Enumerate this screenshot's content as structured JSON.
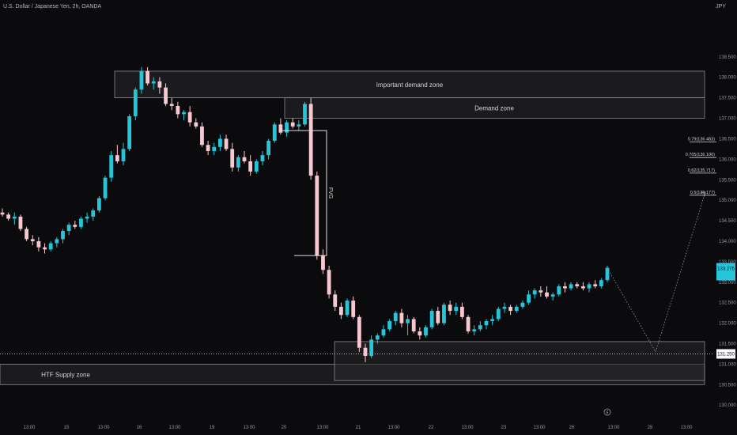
{
  "header": {
    "title": "U.S. Dollar / Japanese Yen, 2h, OANDA",
    "currency": "JPY"
  },
  "colors": {
    "background": "#0b0b0d",
    "up_candle": "#26c6da",
    "down_candle": "#f8c8d0",
    "zone_fill": "#2a2a2e",
    "zone_border": "#8a8a8f",
    "text": "#d1d4dc",
    "axis_text": "#9598a1",
    "price_badge": "#26c6da",
    "level_badge": "#ffffff"
  },
  "chart_data": {
    "type": "candlestick",
    "symbol": "USDJPY",
    "timeframe": "2h",
    "ylim": [
      129.85,
      139.5
    ],
    "y_ticks": [
      "138.500",
      "138.000",
      "137.500",
      "137.000",
      "136.500",
      "136.000",
      "135.500",
      "135.000",
      "134.500",
      "134.000",
      "133.500",
      "133.000",
      "132.500",
      "132.000",
      "131.500",
      "131.000",
      "130.500",
      "130.000"
    ],
    "x_ticks": [
      "13:00",
      "15",
      "13:00",
      "16",
      "13:00",
      "19",
      "13:00",
      "20",
      "13:00",
      "21",
      "13:00",
      "22",
      "13:00",
      "23",
      "13:00",
      "26",
      "13:00",
      "28",
      "13:00"
    ],
    "candles": [
      [
        134.7,
        134.8,
        134.6,
        134.65
      ],
      [
        134.65,
        134.7,
        134.5,
        134.55
      ],
      [
        134.55,
        134.7,
        134.4,
        134.6
      ],
      [
        134.6,
        134.65,
        134.25,
        134.3
      ],
      [
        134.3,
        134.35,
        134.0,
        134.05
      ],
      [
        134.05,
        134.15,
        133.9,
        134.0
      ],
      [
        134.0,
        134.1,
        133.75,
        133.85
      ],
      [
        133.85,
        133.95,
        133.7,
        133.8
      ],
      [
        133.8,
        134.0,
        133.75,
        133.95
      ],
      [
        133.95,
        134.1,
        133.85,
        134.05
      ],
      [
        134.05,
        134.3,
        133.95,
        134.25
      ],
      [
        134.25,
        134.45,
        134.15,
        134.4
      ],
      [
        134.4,
        134.5,
        134.3,
        134.35
      ],
      [
        134.35,
        134.6,
        134.3,
        134.55
      ],
      [
        134.55,
        134.7,
        134.45,
        134.6
      ],
      [
        134.6,
        134.8,
        134.5,
        134.75
      ],
      [
        134.75,
        135.1,
        134.7,
        135.05
      ],
      [
        135.05,
        135.6,
        135.0,
        135.55
      ],
      [
        135.55,
        136.2,
        135.45,
        136.1
      ],
      [
        136.1,
        136.35,
        135.9,
        135.95
      ],
      [
        135.95,
        136.4,
        135.85,
        136.25
      ],
      [
        136.25,
        137.1,
        136.2,
        137.05
      ],
      [
        137.05,
        137.75,
        136.95,
        137.7
      ],
      [
        137.7,
        138.25,
        137.6,
        138.15
      ],
      [
        138.15,
        138.25,
        137.8,
        137.85
      ],
      [
        137.85,
        138.0,
        137.7,
        137.9
      ],
      [
        137.9,
        138.0,
        137.6,
        137.75
      ],
      [
        137.75,
        137.85,
        137.3,
        137.35
      ],
      [
        137.35,
        137.5,
        137.2,
        137.3
      ],
      [
        137.3,
        137.4,
        137.0,
        137.1
      ],
      [
        137.1,
        137.2,
        136.95,
        137.15
      ],
      [
        137.15,
        137.3,
        136.8,
        136.9
      ],
      [
        136.9,
        137.0,
        136.75,
        136.8
      ],
      [
        136.8,
        136.9,
        136.3,
        136.35
      ],
      [
        136.35,
        136.45,
        136.1,
        136.2
      ],
      [
        136.2,
        136.4,
        136.1,
        136.3
      ],
      [
        136.3,
        136.6,
        136.2,
        136.5
      ],
      [
        136.5,
        136.6,
        136.2,
        136.25
      ],
      [
        136.25,
        136.4,
        135.7,
        135.8
      ],
      [
        135.8,
        136.1,
        135.7,
        136.05
      ],
      [
        136.05,
        136.2,
        135.9,
        135.95
      ],
      [
        135.95,
        136.1,
        135.6,
        135.7
      ],
      [
        135.7,
        136.0,
        135.65,
        135.95
      ],
      [
        135.95,
        136.2,
        135.85,
        136.1
      ],
      [
        136.1,
        136.5,
        136.0,
        136.45
      ],
      [
        136.45,
        136.9,
        136.4,
        136.85
      ],
      [
        136.85,
        137.0,
        136.6,
        136.65
      ],
      [
        136.65,
        136.95,
        136.55,
        136.9
      ],
      [
        136.9,
        137.0,
        136.75,
        136.8
      ],
      [
        136.8,
        136.95,
        136.7,
        136.85
      ],
      [
        136.85,
        137.4,
        136.8,
        137.35
      ],
      [
        137.35,
        137.5,
        135.5,
        135.6
      ],
      [
        135.6,
        135.7,
        133.55,
        133.65
      ],
      [
        133.65,
        133.8,
        133.2,
        133.3
      ],
      [
        133.3,
        133.4,
        132.6,
        132.7
      ],
      [
        132.7,
        132.8,
        132.3,
        132.4
      ],
      [
        132.4,
        132.5,
        132.1,
        132.2
      ],
      [
        132.2,
        132.6,
        132.15,
        132.55
      ],
      [
        132.55,
        132.65,
        132.1,
        132.15
      ],
      [
        132.15,
        132.2,
        131.3,
        131.4
      ],
      [
        131.4,
        131.5,
        131.05,
        131.2
      ],
      [
        131.2,
        131.7,
        131.15,
        131.6
      ],
      [
        131.6,
        131.75,
        131.5,
        131.7
      ],
      [
        131.7,
        131.95,
        131.65,
        131.85
      ],
      [
        131.85,
        132.1,
        131.8,
        132.05
      ],
      [
        132.05,
        132.3,
        131.95,
        132.25
      ],
      [
        132.25,
        132.35,
        131.9,
        132.0
      ],
      [
        132.0,
        132.2,
        131.7,
        132.1
      ],
      [
        132.1,
        132.15,
        131.75,
        131.8
      ],
      [
        131.8,
        131.9,
        131.6,
        131.7
      ],
      [
        131.7,
        131.95,
        131.65,
        131.9
      ],
      [
        131.9,
        132.35,
        131.85,
        132.3
      ],
      [
        132.3,
        132.4,
        131.95,
        132.0
      ],
      [
        132.0,
        132.5,
        131.95,
        132.45
      ],
      [
        132.45,
        132.55,
        132.2,
        132.3
      ],
      [
        132.3,
        132.5,
        132.2,
        132.4
      ],
      [
        132.4,
        132.5,
        132.1,
        132.15
      ],
      [
        132.15,
        132.2,
        131.75,
        131.8
      ],
      [
        131.8,
        131.95,
        131.7,
        131.85
      ],
      [
        131.85,
        132.05,
        131.8,
        131.95
      ],
      [
        131.95,
        132.1,
        131.85,
        132.05
      ],
      [
        132.05,
        132.2,
        131.95,
        132.1
      ],
      [
        132.1,
        132.4,
        132.05,
        132.35
      ],
      [
        132.35,
        132.5,
        132.25,
        132.4
      ],
      [
        132.4,
        132.45,
        132.2,
        132.3
      ],
      [
        132.3,
        132.45,
        132.25,
        132.4
      ],
      [
        132.4,
        132.55,
        132.35,
        132.5
      ],
      [
        132.5,
        132.8,
        132.45,
        132.7
      ],
      [
        132.7,
        132.85,
        132.6,
        132.8
      ],
      [
        132.8,
        132.9,
        132.65,
        132.75
      ],
      [
        132.75,
        132.9,
        132.6,
        132.65
      ],
      [
        132.65,
        132.75,
        132.55,
        132.7
      ],
      [
        132.7,
        132.95,
        132.65,
        132.9
      ],
      [
        132.9,
        133.0,
        132.75,
        132.85
      ],
      [
        132.85,
        133.0,
        132.8,
        132.95
      ],
      [
        132.95,
        133.0,
        132.85,
        132.9
      ],
      [
        132.9,
        133.0,
        132.8,
        132.85
      ],
      [
        132.85,
        133.0,
        132.75,
        132.95
      ],
      [
        132.95,
        133.05,
        132.85,
        132.9
      ],
      [
        132.9,
        133.1,
        132.85,
        133.05
      ],
      [
        133.05,
        133.4,
        133.0,
        133.35
      ]
    ],
    "current_price": "133.275",
    "horizontal_level": "131.250",
    "fib_levels": [
      {
        "label": "0.79(136.483)",
        "price": 136.48
      },
      {
        "label": "0.705(136.100)",
        "price": 136.1
      },
      {
        "label": "0.62(135.717)",
        "price": 135.72
      },
      {
        "label": "0.5(135.177)",
        "price": 135.18
      }
    ],
    "zones": [
      {
        "label": "Important demand zone",
        "top": 138.15,
        "bottom": 137.5
      },
      {
        "label": "Demand zone",
        "top": 137.5,
        "bottom": 137.0
      },
      {
        "label": "HTF Supply zone",
        "top": 131.0,
        "bottom": 130.5
      },
      {
        "label": "",
        "top": 131.55,
        "bottom": 130.6
      }
    ],
    "fvg_label": "FVG",
    "fvg_range": [
      136.7,
      133.65
    ],
    "projection": [
      133.35,
      131.3,
      135.2
    ]
  }
}
